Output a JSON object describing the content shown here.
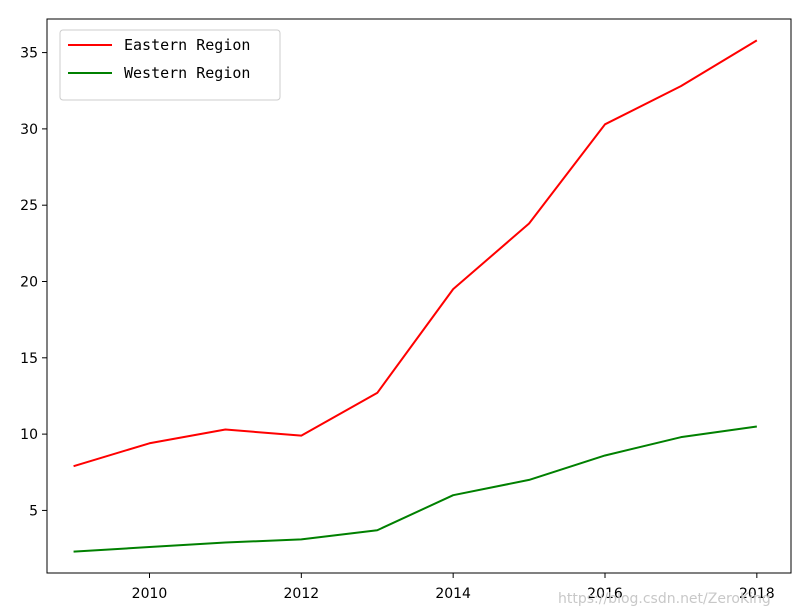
{
  "chart_data": {
    "type": "line",
    "x": [
      2009,
      2010,
      2011,
      2012,
      2013,
      2014,
      2015,
      2016,
      2017,
      2018
    ],
    "series": [
      {
        "name": "Eastern Region",
        "color": "#ff0000",
        "values": [
          7.9,
          9.4,
          10.3,
          9.9,
          12.7,
          19.5,
          23.8,
          30.3,
          32.8,
          35.8
        ]
      },
      {
        "name": "Western Region",
        "color": "#008000",
        "values": [
          2.3,
          2.6,
          2.9,
          3.1,
          3.7,
          6.0,
          7.0,
          8.6,
          9.8,
          10.5
        ]
      }
    ],
    "xlim": [
      2008.65,
      2018.45
    ],
    "ylim": [
      0.9,
      37.2
    ],
    "xticks": [
      2010,
      2012,
      2014,
      2016,
      2018
    ],
    "yticks": [
      5,
      10,
      15,
      20,
      25,
      30,
      35
    ],
    "xtick_labels": [
      "2010",
      "2012",
      "2014",
      "2016",
      "2018"
    ],
    "ytick_labels": [
      "5",
      "10",
      "15",
      "20",
      "25",
      "30",
      "35"
    ],
    "grid": false,
    "legend_position": "top-left",
    "title": "",
    "xlabel": "",
    "ylabel": ""
  },
  "watermark": "https://blog.csdn.net/ZeroKing"
}
